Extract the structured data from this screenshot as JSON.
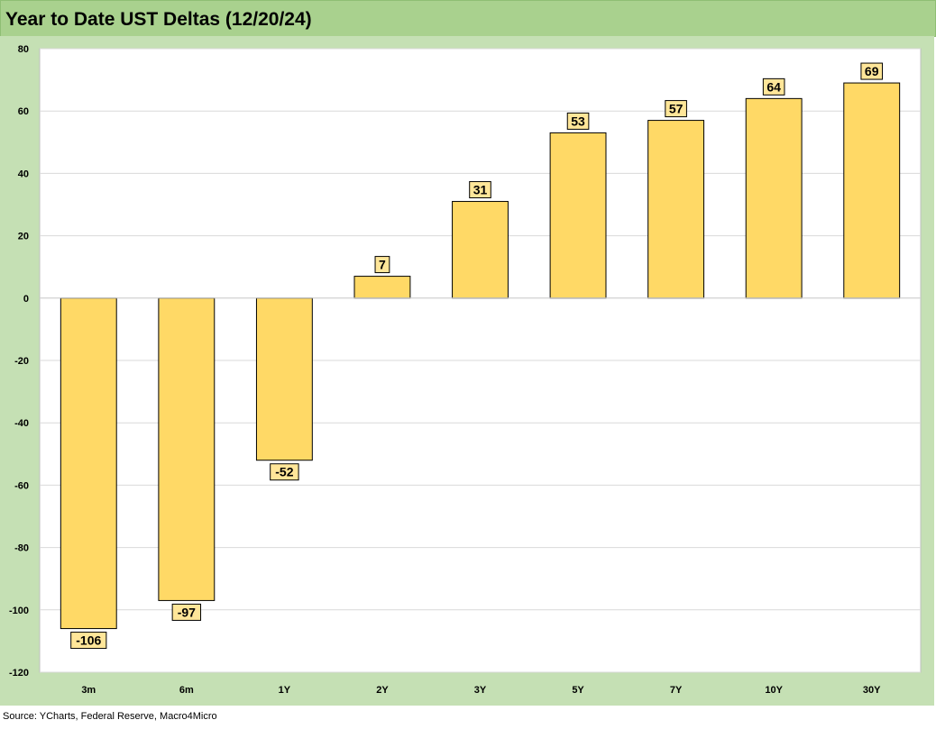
{
  "title": "Year to Date UST Deltas (12/20/24)",
  "source": "Source: YCharts, Federal Reserve, Macro4Micro",
  "colors": {
    "bar_fill": "#ffd966",
    "bar_stroke": "#000000",
    "label_fill": "#ffe699",
    "plot_bg": "#ffffff",
    "outer_bg": "#c5e0b4",
    "title_bg": "#a9d18e",
    "grid": "#d9d9d9"
  },
  "chart_data": {
    "type": "bar",
    "title": "",
    "xlabel": "",
    "ylabel": "",
    "categories": [
      "3m",
      "6m",
      "1Y",
      "2Y",
      "3Y",
      "5Y",
      "7Y",
      "10Y",
      "30Y"
    ],
    "values": [
      -106,
      -97,
      -52,
      7,
      31,
      53,
      57,
      64,
      69
    ],
    "data_labels": [
      "-106",
      "-97",
      "-52",
      "7",
      "31",
      "53",
      "57",
      "64",
      "69"
    ],
    "ylim": [
      -120,
      80
    ],
    "yticks": [
      -120,
      -100,
      -80,
      -60,
      -40,
      -20,
      0,
      20,
      40,
      60,
      80
    ],
    "ytick_labels": [
      "-120",
      "-100",
      "-80",
      "-60",
      "-40",
      "-20",
      "0",
      "20",
      "40",
      "60",
      "80"
    ],
    "grid": true,
    "legend": "none"
  }
}
